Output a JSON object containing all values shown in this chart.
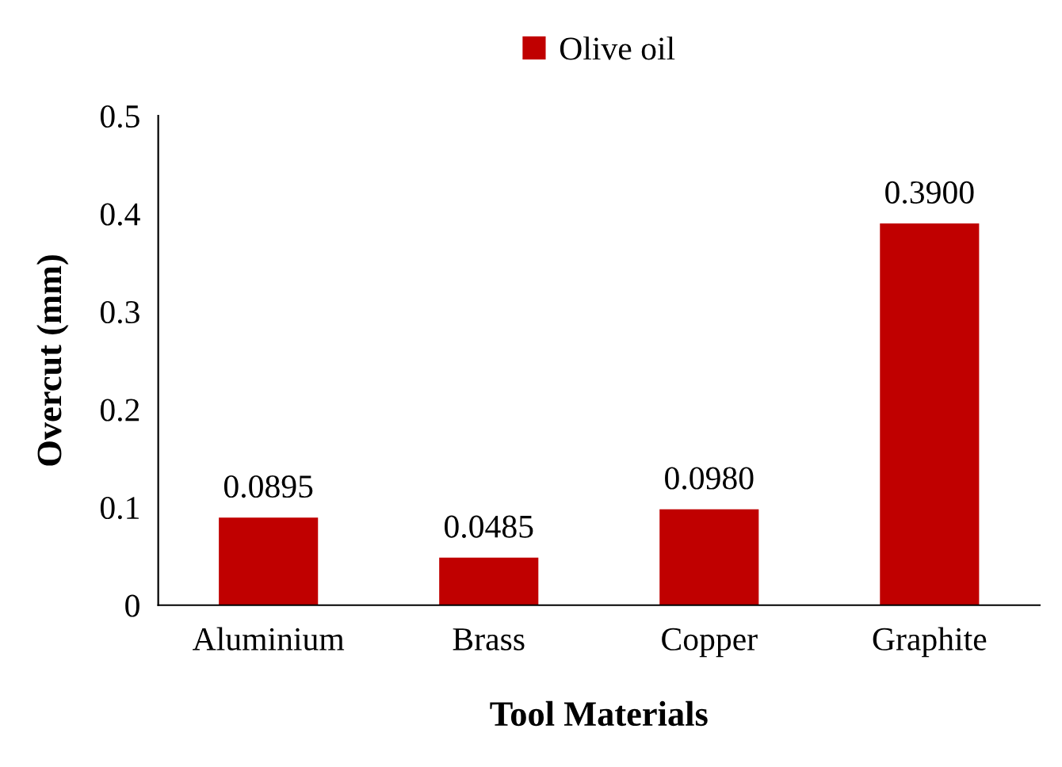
{
  "chart_data": {
    "type": "bar",
    "xlabel": "Tool Materials",
    "ylabel": "Overcut (mm)",
    "categories": [
      "Aluminium",
      "Brass",
      "Copper",
      "Graphite"
    ],
    "series": [
      {
        "name": "Olive oil",
        "color": "#c00000",
        "values": [
          0.0895,
          0.0485,
          0.098,
          0.39
        ],
        "value_labels": [
          "0.0895",
          "0.0485",
          "0.0980",
          "0.3900"
        ]
      }
    ],
    "ylim": [
      0,
      0.5
    ],
    "yticks": [
      {
        "value": 0,
        "label": "0"
      },
      0.1,
      0.2,
      0.3,
      0.4,
      0.5
    ],
    "grid": false,
    "legend": "top"
  }
}
